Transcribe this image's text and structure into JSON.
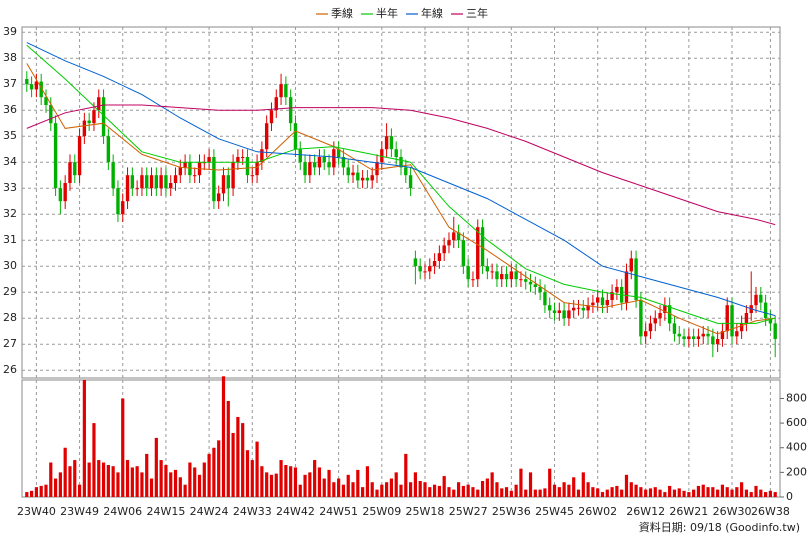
{
  "chart_data": [
    {
      "type": "candlestick",
      "xlim": [
        -1,
        157
      ],
      "xticks": [
        {
          "value": 2,
          "label": "23W40"
        },
        {
          "value": 11,
          "label": "23W49"
        },
        {
          "value": 20,
          "label": "24W06"
        },
        {
          "value": 29,
          "label": "24W15"
        },
        {
          "value": 38,
          "label": "24W24"
        },
        {
          "value": 47,
          "label": "24W33"
        },
        {
          "value": 56,
          "label": "24W42"
        },
        {
          "value": 65,
          "label": "24W51"
        },
        {
          "value": 74,
          "label": "25W09"
        },
        {
          "value": 83,
          "label": "25W18"
        },
        {
          "value": 92,
          "label": "25W27"
        },
        {
          "value": 101,
          "label": "25W36"
        },
        {
          "value": 110,
          "label": "25W45"
        },
        {
          "value": 119,
          "label": "26W02"
        },
        {
          "value": 129,
          "label": "26W12"
        },
        {
          "value": 138,
          "label": "26W21"
        },
        {
          "value": 147,
          "label": "26W30"
        },
        {
          "value": 155,
          "label": "26W38"
        }
      ],
      "ylim": [
        25.7,
        39.2
      ],
      "yticks": [
        26,
        27,
        28,
        29,
        30,
        31,
        32,
        33,
        34,
        35,
        36,
        37,
        38,
        39
      ],
      "grid": true,
      "up_color": "#e00000",
      "down_color": "#00b000",
      "open": [
        37.2,
        37,
        36.8,
        37.1,
        36.5,
        36.2,
        35.5,
        33,
        32.5,
        33.2,
        34,
        33.5,
        35,
        35.6,
        35.5,
        36,
        36.5,
        35,
        34,
        33,
        32,
        32.5,
        33.5,
        33,
        33,
        33.5,
        33,
        33.5,
        33,
        33.5,
        33,
        33.2,
        33.5,
        33.8,
        34,
        33.5,
        33.5,
        34,
        34,
        34.2,
        32.5,
        32.8,
        33.5,
        33,
        34,
        34.2,
        34.2,
        33.5,
        33.5,
        34,
        34.5,
        35.5,
        36,
        36.5,
        37,
        36.5,
        35.5,
        34.5,
        34,
        33.5,
        34,
        33.8,
        34.2,
        34,
        33.8,
        34.5,
        34.2,
        33.8,
        33.5,
        33.6,
        33.3,
        33.4,
        33.3,
        33.5,
        34,
        34.5,
        35,
        34.5,
        34.2,
        33.8,
        33.5,
        30.3,
        30,
        29.8,
        29.8,
        30,
        30.2,
        30.5,
        30.8,
        31,
        31.3,
        31,
        30,
        29.5,
        29.5,
        31.5,
        30,
        29.8,
        29.8,
        29.5,
        29.7,
        29.5,
        29.8,
        29.5,
        29.5,
        29.4,
        29.3,
        29.2,
        29,
        28.5,
        28.3,
        28.2,
        28.3,
        28,
        28.3,
        28.4,
        28.4,
        28.3,
        28.5,
        28.6,
        28.8,
        28.5,
        28.7,
        29,
        29.2,
        28.6,
        29.8,
        30.3,
        28.7,
        27.3,
        27.5,
        27.8,
        28,
        28.2,
        28.5,
        27.8,
        27.4,
        27.3,
        27.2,
        27.3,
        27.2,
        27.3,
        27.4,
        27.3,
        27,
        27.2,
        27.5,
        28.5,
        27.3,
        27.5,
        27.8,
        28.2,
        28.5,
        28.9,
        28.6,
        28,
        27.8
      ],
      "high": [
        37.5,
        37.3,
        37.4,
        37.4,
        36.8,
        36.5,
        35.8,
        33.3,
        33.5,
        34.3,
        34.3,
        35.3,
        35.9,
        35.9,
        36.3,
        36.8,
        36.8,
        35.3,
        34.3,
        33.3,
        32.8,
        33.8,
        33.8,
        33.3,
        33.8,
        33.8,
        33.8,
        33.8,
        33.8,
        33.8,
        33.5,
        33.8,
        34.1,
        34.3,
        34.3,
        33.8,
        34.3,
        34.3,
        34.5,
        34.5,
        33.1,
        33.8,
        33.8,
        34.3,
        34.5,
        34.5,
        34.5,
        33.8,
        34.3,
        34.8,
        35.8,
        36.3,
        36.8,
        37.4,
        37.3,
        36.8,
        35.8,
        34.8,
        34.3,
        34.3,
        34.3,
        34.5,
        34.5,
        34.3,
        34.8,
        34.8,
        34.5,
        34.1,
        33.9,
        33.9,
        33.7,
        33.7,
        33.8,
        34.3,
        34.8,
        35.5,
        35.3,
        34.8,
        34.5,
        34.1,
        33.8,
        30.6,
        30.3,
        30.1,
        30.3,
        30.5,
        30.8,
        31.1,
        31.3,
        31.9,
        31.6,
        31.3,
        30.3,
        29.8,
        31.8,
        31.8,
        30.3,
        30.1,
        30.1,
        30,
        30,
        30.1,
        30.1,
        29.8,
        29.8,
        29.7,
        29.6,
        29.5,
        29.3,
        28.8,
        28.6,
        28.6,
        28.6,
        28.6,
        28.7,
        28.7,
        28.7,
        28.8,
        28.9,
        29.1,
        29.1,
        29,
        29.3,
        29.5,
        29.5,
        30.1,
        30.6,
        30.6,
        29,
        27.8,
        28.1,
        28.3,
        28.5,
        28.8,
        28.8,
        28.1,
        27.7,
        27.6,
        27.6,
        27.6,
        27.6,
        27.7,
        27.7,
        27.6,
        27.5,
        27.8,
        28.8,
        28.8,
        27.8,
        28.1,
        28.5,
        29.8,
        29.2,
        29.2,
        28.9,
        28.3,
        28.1
      ],
      "low": [
        36.7,
        36.5,
        36.5,
        36.2,
        35.9,
        35.2,
        32.7,
        32,
        32.2,
        32.9,
        33.2,
        33.2,
        34.7,
        35.2,
        35.2,
        35.7,
        34.7,
        33.7,
        32.7,
        31.7,
        31.7,
        32.2,
        32.7,
        32.7,
        32.7,
        32.7,
        32.7,
        32.7,
        32.7,
        32.7,
        32.7,
        32.9,
        33.2,
        33.5,
        33.2,
        33.2,
        33.2,
        33.7,
        33.7,
        32.2,
        32.2,
        32.5,
        32.3,
        32.7,
        33.7,
        33.9,
        33.2,
        33.2,
        33.2,
        33.7,
        34.2,
        35.2,
        35.7,
        36.2,
        36.2,
        35.2,
        34.2,
        33.7,
        33.2,
        33.2,
        33.5,
        33.5,
        33.7,
        33.5,
        33.5,
        33.9,
        33.5,
        33.2,
        33.2,
        33,
        33,
        33,
        33,
        33.2,
        33.7,
        34.2,
        34.2,
        33.9,
        33.5,
        33.2,
        32.7,
        29.3,
        29.5,
        29.5,
        29.5,
        29.7,
        29.9,
        30.2,
        30.5,
        30.7,
        30.7,
        29.7,
        29.2,
        29.2,
        29.2,
        29.7,
        29.5,
        29.5,
        29.2,
        29.2,
        29.2,
        29.2,
        29.2,
        29.2,
        29.1,
        29,
        28.9,
        28.7,
        28.2,
        28,
        27.9,
        27.9,
        27.7,
        27.7,
        28,
        28.1,
        28,
        28,
        28.2,
        28.3,
        28.2,
        28.2,
        28.4,
        28.7,
        28.3,
        28.3,
        29.5,
        28.4,
        27,
        27,
        27.2,
        27.5,
        27.7,
        27.9,
        27.5,
        27.1,
        27,
        26.9,
        26.9,
        26.9,
        26.9,
        27,
        27,
        26.5,
        26.7,
        26.9,
        27.2,
        27,
        27,
        27.2,
        27.5,
        27.9,
        28.2,
        28.3,
        27.7,
        27.5,
        26.5
      ],
      "close": [
        37,
        36.8,
        37.1,
        36.5,
        36.2,
        35.5,
        33,
        32.5,
        33.2,
        34,
        33.5,
        35,
        35.6,
        35.5,
        36,
        36.5,
        35,
        34,
        33,
        32,
        32.5,
        33.5,
        33,
        33,
        33.5,
        33,
        33.5,
        33,
        33.5,
        33,
        33.2,
        33.5,
        33.8,
        34,
        33.5,
        33.5,
        34,
        34,
        34.2,
        32.5,
        32.8,
        33.5,
        33,
        34,
        34.2,
        34.2,
        33.5,
        33.5,
        34,
        34.5,
        35.5,
        36,
        36.5,
        37,
        36.5,
        35.5,
        34.5,
        34,
        33.5,
        34,
        33.8,
        34.2,
        34,
        33.8,
        34.5,
        34.2,
        33.8,
        33.5,
        33.6,
        33.3,
        33.4,
        33.3,
        33.5,
        34,
        34.5,
        35,
        34.5,
        34.2,
        33.8,
        33.5,
        33,
        30,
        29.8,
        29.8,
        30,
        30.2,
        30.5,
        30.8,
        31,
        31.3,
        31,
        30,
        29.5,
        29.5,
        31.5,
        30,
        29.8,
        29.8,
        29.5,
        29.7,
        29.5,
        29.8,
        29.5,
        29.5,
        29.4,
        29.3,
        29.2,
        29,
        28.5,
        28.3,
        28.2,
        28.3,
        28,
        28.3,
        28.4,
        28.4,
        28.3,
        28.5,
        28.6,
        28.8,
        28.5,
        28.7,
        29,
        29.2,
        28.6,
        29.8,
        30.3,
        28.7,
        27.3,
        27.5,
        27.8,
        28,
        28.2,
        28.5,
        27.8,
        27.4,
        27.3,
        27.2,
        27.3,
        27.2,
        27.3,
        27.4,
        27.3,
        27,
        27.2,
        27.5,
        28.5,
        27.3,
        27.5,
        27.8,
        28.2,
        28.5,
        28.9,
        28.6,
        28,
        27.8,
        27.2
      ],
      "series": [
        {
          "name": "季線",
          "color": "#d06000",
          "x": [
            0,
            8,
            16,
            24,
            32,
            40,
            48,
            56,
            64,
            72,
            80,
            88,
            96,
            104,
            112,
            120,
            128,
            136,
            144,
            152,
            156
          ],
          "values": [
            37.8,
            35.3,
            35.5,
            34.3,
            33.8,
            33.7,
            33.8,
            35.2,
            34.6,
            33.7,
            33.9,
            31.5,
            30.6,
            29.6,
            28.6,
            28.4,
            28.7,
            28,
            27.4,
            27.9,
            28
          ]
        },
        {
          "name": "半年",
          "color": "#00cc00",
          "x": [
            0,
            8,
            16,
            24,
            32,
            40,
            48,
            56,
            64,
            72,
            80,
            88,
            96,
            104,
            112,
            120,
            128,
            136,
            144,
            152,
            156
          ],
          "values": [
            38.5,
            37.2,
            35.8,
            34.4,
            34,
            34,
            34,
            34.5,
            34.6,
            34.3,
            34,
            32.3,
            31,
            29.9,
            29.3,
            29,
            28.8,
            28.3,
            27.8,
            27.8,
            28
          ]
        },
        {
          "name": "年線",
          "color": "#0060d0",
          "x": [
            0,
            8,
            16,
            24,
            32,
            40,
            48,
            56,
            64,
            72,
            80,
            88,
            96,
            104,
            112,
            120,
            128,
            136,
            144,
            152,
            156
          ],
          "values": [
            38.6,
            37.9,
            37.3,
            36.6,
            35.7,
            34.9,
            34.4,
            34.3,
            34.2,
            34,
            33.8,
            33.2,
            32.6,
            31.8,
            31,
            30,
            29.6,
            29.2,
            28.8,
            28.3,
            28.1
          ]
        },
        {
          "name": "三年",
          "color": "#c00060",
          "x": [
            0,
            8,
            16,
            24,
            32,
            40,
            48,
            56,
            64,
            72,
            80,
            88,
            96,
            104,
            112,
            120,
            128,
            136,
            144,
            152,
            156
          ],
          "values": [
            35.3,
            35.9,
            36.2,
            36.2,
            36.1,
            36,
            36,
            36.1,
            36.1,
            36.1,
            36,
            35.7,
            35.3,
            34.8,
            34.2,
            33.6,
            33.1,
            32.6,
            32.1,
            31.8,
            31.6
          ]
        }
      ]
    },
    {
      "type": "bar",
      "xlim": [
        -1,
        157
      ],
      "ylim": [
        0,
        950
      ],
      "yticks": [
        0,
        200,
        400,
        600,
        800
      ],
      "color": "#e00000",
      "values": [
        40,
        50,
        80,
        90,
        100,
        280,
        150,
        200,
        400,
        250,
        300,
        100,
        950,
        280,
        600,
        300,
        280,
        260,
        250,
        200,
        800,
        300,
        240,
        250,
        200,
        350,
        150,
        480,
        300,
        260,
        200,
        220,
        160,
        100,
        280,
        240,
        180,
        280,
        350,
        400,
        460,
        980,
        780,
        520,
        650,
        600,
        380,
        300,
        450,
        250,
        200,
        180,
        190,
        300,
        260,
        250,
        240,
        100,
        180,
        200,
        300,
        240,
        150,
        220,
        120,
        150,
        100,
        180,
        120,
        220,
        80,
        250,
        120,
        60,
        100,
        120,
        150,
        200,
        100,
        350,
        120,
        200,
        130,
        120,
        80,
        100,
        90,
        170,
        80,
        60,
        120,
        90,
        100,
        80,
        60,
        130,
        150,
        200,
        120,
        70,
        80,
        50,
        100,
        230,
        60,
        200,
        60,
        60,
        70,
        230,
        100,
        80,
        120,
        100,
        160,
        60,
        200,
        120,
        80,
        70,
        40,
        60,
        80,
        90,
        60,
        180,
        120,
        100,
        80,
        60,
        70,
        80,
        60,
        40,
        90,
        60,
        70,
        50,
        40,
        60,
        90,
        100,
        80,
        80,
        60,
        100,
        80,
        60,
        80,
        120,
        60,
        40,
        90,
        60,
        40,
        50,
        40
      ]
    }
  ],
  "footer": "資料日期: 09/18 (Goodinfo.tw)"
}
